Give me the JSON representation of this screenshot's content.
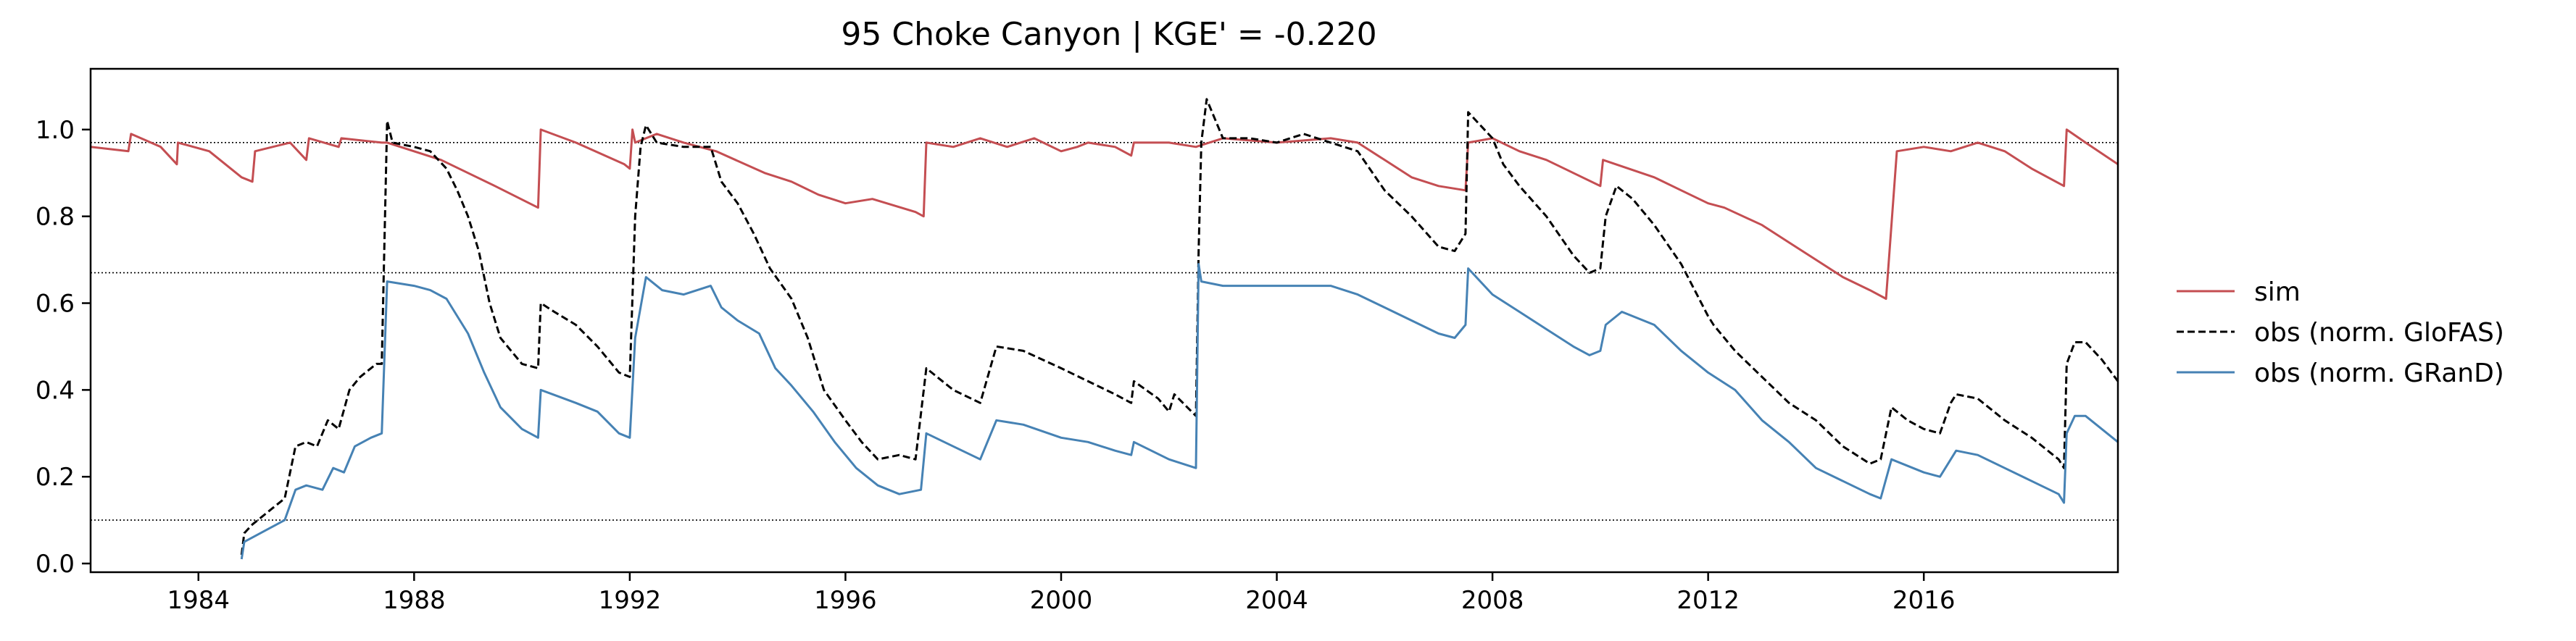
{
  "chart_data": {
    "type": "line",
    "title": "95  Choke Canyon | KGE' = -0.220",
    "xlabel": "",
    "ylabel": "",
    "xlim": [
      1982.0,
      2019.6
    ],
    "ylim": [
      -0.02,
      1.14
    ],
    "x_ticks": [
      1984,
      1988,
      1992,
      1996,
      2000,
      2004,
      2008,
      2012,
      2016
    ],
    "x_tick_labels": [
      "1984",
      "1988",
      "1992",
      "1996",
      "2000",
      "2004",
      "2008",
      "2012",
      "2016"
    ],
    "y_ticks": [
      0.0,
      0.2,
      0.4,
      0.6,
      0.8,
      1.0
    ],
    "y_tick_labels": [
      "0.0",
      "0.2",
      "0.4",
      "0.6",
      "0.8",
      "1.0"
    ],
    "reference_lines": [
      0.1,
      0.67,
      0.97
    ],
    "grid": false,
    "legend_position": "right-outside",
    "series": [
      {
        "name": "sim",
        "color": "#c44e52",
        "style": "solid",
        "points": [
          [
            1982.0,
            0.96
          ],
          [
            1982.7,
            0.95
          ],
          [
            1982.75,
            0.99
          ],
          [
            1983.3,
            0.96
          ],
          [
            1983.6,
            0.92
          ],
          [
            1983.62,
            0.97
          ],
          [
            1984.2,
            0.95
          ],
          [
            1984.8,
            0.89
          ],
          [
            1985.0,
            0.88
          ],
          [
            1985.05,
            0.95
          ],
          [
            1985.7,
            0.97
          ],
          [
            1986.0,
            0.93
          ],
          [
            1986.05,
            0.98
          ],
          [
            1986.6,
            0.96
          ],
          [
            1986.65,
            0.98
          ],
          [
            1987.4,
            0.97
          ],
          [
            1987.5,
            0.97
          ],
          [
            1988.5,
            0.93
          ],
          [
            1989.0,
            0.9
          ],
          [
            1989.5,
            0.87
          ],
          [
            1990.3,
            0.82
          ],
          [
            1990.35,
            1.0
          ],
          [
            1991.0,
            0.97
          ],
          [
            1991.9,
            0.92
          ],
          [
            1992.0,
            0.91
          ],
          [
            1992.05,
            1.0
          ],
          [
            1992.1,
            0.97
          ],
          [
            1992.5,
            0.99
          ],
          [
            1993.0,
            0.97
          ],
          [
            1993.6,
            0.95
          ],
          [
            1994.5,
            0.9
          ],
          [
            1995.0,
            0.88
          ],
          [
            1995.5,
            0.85
          ],
          [
            1996.0,
            0.83
          ],
          [
            1996.5,
            0.84
          ],
          [
            1997.3,
            0.81
          ],
          [
            1997.45,
            0.8
          ],
          [
            1997.5,
            0.97
          ],
          [
            1998.0,
            0.96
          ],
          [
            1998.5,
            0.98
          ],
          [
            1999.0,
            0.96
          ],
          [
            1999.5,
            0.98
          ],
          [
            2000.0,
            0.95
          ],
          [
            2000.3,
            0.96
          ],
          [
            2000.5,
            0.97
          ],
          [
            2001.0,
            0.96
          ],
          [
            2001.3,
            0.94
          ],
          [
            2001.35,
            0.97
          ],
          [
            2002.0,
            0.97
          ],
          [
            2002.5,
            0.96
          ],
          [
            2003.0,
            0.98
          ],
          [
            2004.0,
            0.97
          ],
          [
            2005.0,
            0.98
          ],
          [
            2005.5,
            0.97
          ],
          [
            2006.0,
            0.93
          ],
          [
            2006.5,
            0.89
          ],
          [
            2007.0,
            0.87
          ],
          [
            2007.5,
            0.86
          ],
          [
            2007.55,
            0.97
          ],
          [
            2008.0,
            0.98
          ],
          [
            2008.5,
            0.95
          ],
          [
            2009.0,
            0.93
          ],
          [
            2009.5,
            0.9
          ],
          [
            2010.0,
            0.87
          ],
          [
            2010.05,
            0.93
          ],
          [
            2011.0,
            0.89
          ],
          [
            2011.5,
            0.86
          ],
          [
            2012.0,
            0.83
          ],
          [
            2012.3,
            0.82
          ],
          [
            2013.0,
            0.78
          ],
          [
            2013.5,
            0.74
          ],
          [
            2014.0,
            0.7
          ],
          [
            2014.5,
            0.66
          ],
          [
            2015.0,
            0.63
          ],
          [
            2015.3,
            0.61
          ],
          [
            2015.5,
            0.95
          ],
          [
            2016.0,
            0.96
          ],
          [
            2016.5,
            0.95
          ],
          [
            2017.0,
            0.97
          ],
          [
            2017.5,
            0.95
          ],
          [
            2018.0,
            0.91
          ],
          [
            2018.6,
            0.87
          ],
          [
            2018.65,
            1.0
          ],
          [
            2019.0,
            0.97
          ],
          [
            2019.6,
            0.92
          ]
        ]
      },
      {
        "name": "obs (norm. GloFAS)",
        "color": "#000000",
        "style": "dashed",
        "points": [
          [
            1984.8,
            0.02
          ],
          [
            1984.85,
            0.07
          ],
          [
            1985.0,
            0.09
          ],
          [
            1985.3,
            0.12
          ],
          [
            1985.6,
            0.15
          ],
          [
            1985.8,
            0.27
          ],
          [
            1986.0,
            0.28
          ],
          [
            1986.2,
            0.27
          ],
          [
            1986.4,
            0.33
          ],
          [
            1986.6,
            0.31
          ],
          [
            1986.8,
            0.4
          ],
          [
            1987.0,
            0.43
          ],
          [
            1987.3,
            0.46
          ],
          [
            1987.4,
            0.46
          ],
          [
            1987.5,
            1.02
          ],
          [
            1987.6,
            0.97
          ],
          [
            1988.0,
            0.96
          ],
          [
            1988.3,
            0.95
          ],
          [
            1988.6,
            0.91
          ],
          [
            1988.8,
            0.86
          ],
          [
            1989.0,
            0.8
          ],
          [
            1989.2,
            0.72
          ],
          [
            1989.4,
            0.6
          ],
          [
            1989.6,
            0.52
          ],
          [
            1990.0,
            0.46
          ],
          [
            1990.3,
            0.45
          ],
          [
            1990.35,
            0.6
          ],
          [
            1990.6,
            0.58
          ],
          [
            1991.0,
            0.55
          ],
          [
            1991.4,
            0.5
          ],
          [
            1991.8,
            0.44
          ],
          [
            1992.0,
            0.43
          ],
          [
            1992.1,
            0.8
          ],
          [
            1992.2,
            0.96
          ],
          [
            1992.3,
            1.01
          ],
          [
            1992.5,
            0.97
          ],
          [
            1993.0,
            0.96
          ],
          [
            1993.5,
            0.96
          ],
          [
            1993.7,
            0.88
          ],
          [
            1994.0,
            0.83
          ],
          [
            1994.3,
            0.76
          ],
          [
            1994.6,
            0.68
          ],
          [
            1995.0,
            0.61
          ],
          [
            1995.3,
            0.52
          ],
          [
            1995.6,
            0.4
          ],
          [
            1996.0,
            0.33
          ],
          [
            1996.3,
            0.28
          ],
          [
            1996.6,
            0.24
          ],
          [
            1997.0,
            0.25
          ],
          [
            1997.3,
            0.24
          ],
          [
            1997.5,
            0.45
          ],
          [
            1998.0,
            0.4
          ],
          [
            1998.5,
            0.37
          ],
          [
            1998.8,
            0.5
          ],
          [
            1999.3,
            0.49
          ],
          [
            2000.0,
            0.45
          ],
          [
            2000.5,
            0.42
          ],
          [
            2001.0,
            0.39
          ],
          [
            2001.3,
            0.37
          ],
          [
            2001.35,
            0.42
          ],
          [
            2001.8,
            0.38
          ],
          [
            2002.0,
            0.35
          ],
          [
            2002.1,
            0.39
          ],
          [
            2002.5,
            0.34
          ],
          [
            2002.55,
            0.72
          ],
          [
            2002.6,
            0.97
          ],
          [
            2002.7,
            1.07
          ],
          [
            2003.0,
            0.98
          ],
          [
            2003.5,
            0.98
          ],
          [
            2004.0,
            0.97
          ],
          [
            2004.5,
            0.99
          ],
          [
            2005.0,
            0.97
          ],
          [
            2005.5,
            0.95
          ],
          [
            2006.0,
            0.86
          ],
          [
            2006.5,
            0.8
          ],
          [
            2007.0,
            0.73
          ],
          [
            2007.3,
            0.72
          ],
          [
            2007.5,
            0.76
          ],
          [
            2007.55,
            1.04
          ],
          [
            2008.0,
            0.98
          ],
          [
            2008.2,
            0.92
          ],
          [
            2008.5,
            0.87
          ],
          [
            2009.0,
            0.8
          ],
          [
            2009.5,
            0.71
          ],
          [
            2009.8,
            0.67
          ],
          [
            2010.0,
            0.68
          ],
          [
            2010.1,
            0.8
          ],
          [
            2010.3,
            0.87
          ],
          [
            2010.6,
            0.84
          ],
          [
            2011.0,
            0.78
          ],
          [
            2011.5,
            0.69
          ],
          [
            2012.0,
            0.57
          ],
          [
            2012.1,
            0.55
          ],
          [
            2012.5,
            0.49
          ],
          [
            2013.0,
            0.43
          ],
          [
            2013.5,
            0.37
          ],
          [
            2014.0,
            0.33
          ],
          [
            2014.5,
            0.27
          ],
          [
            2015.0,
            0.23
          ],
          [
            2015.2,
            0.24
          ],
          [
            2015.4,
            0.36
          ],
          [
            2015.7,
            0.33
          ],
          [
            2016.0,
            0.31
          ],
          [
            2016.3,
            0.3
          ],
          [
            2016.5,
            0.37
          ],
          [
            2016.6,
            0.39
          ],
          [
            2017.0,
            0.38
          ],
          [
            2017.5,
            0.33
          ],
          [
            2018.0,
            0.29
          ],
          [
            2018.5,
            0.24
          ],
          [
            2018.6,
            0.22
          ],
          [
            2018.65,
            0.46
          ],
          [
            2018.8,
            0.51
          ],
          [
            2019.0,
            0.51
          ],
          [
            2019.3,
            0.47
          ],
          [
            2019.6,
            0.42
          ]
        ]
      },
      {
        "name": "obs (norm. GRanD)",
        "color": "#4682b4",
        "style": "solid",
        "points": [
          [
            1984.8,
            0.01
          ],
          [
            1984.85,
            0.05
          ],
          [
            1985.0,
            0.06
          ],
          [
            1985.3,
            0.08
          ],
          [
            1985.6,
            0.1
          ],
          [
            1985.8,
            0.17
          ],
          [
            1986.0,
            0.18
          ],
          [
            1986.3,
            0.17
          ],
          [
            1986.5,
            0.22
          ],
          [
            1986.7,
            0.21
          ],
          [
            1986.9,
            0.27
          ],
          [
            1987.2,
            0.29
          ],
          [
            1987.4,
            0.3
          ],
          [
            1987.5,
            0.65
          ],
          [
            1988.0,
            0.64
          ],
          [
            1988.3,
            0.63
          ],
          [
            1988.6,
            0.61
          ],
          [
            1989.0,
            0.53
          ],
          [
            1989.3,
            0.44
          ],
          [
            1989.6,
            0.36
          ],
          [
            1990.0,
            0.31
          ],
          [
            1990.3,
            0.29
          ],
          [
            1990.35,
            0.4
          ],
          [
            1991.0,
            0.37
          ],
          [
            1991.4,
            0.35
          ],
          [
            1991.8,
            0.3
          ],
          [
            1992.0,
            0.29
          ],
          [
            1992.1,
            0.52
          ],
          [
            1992.3,
            0.66
          ],
          [
            1992.6,
            0.63
          ],
          [
            1993.0,
            0.62
          ],
          [
            1993.5,
            0.64
          ],
          [
            1993.7,
            0.59
          ],
          [
            1994.0,
            0.56
          ],
          [
            1994.4,
            0.53
          ],
          [
            1994.7,
            0.45
          ],
          [
            1995.0,
            0.41
          ],
          [
            1995.4,
            0.35
          ],
          [
            1995.8,
            0.28
          ],
          [
            1996.2,
            0.22
          ],
          [
            1996.6,
            0.18
          ],
          [
            1997.0,
            0.16
          ],
          [
            1997.4,
            0.17
          ],
          [
            1997.5,
            0.3
          ],
          [
            1998.0,
            0.27
          ],
          [
            1998.5,
            0.24
          ],
          [
            1998.8,
            0.33
          ],
          [
            1999.3,
            0.32
          ],
          [
            2000.0,
            0.29
          ],
          [
            2000.5,
            0.28
          ],
          [
            2001.0,
            0.26
          ],
          [
            2001.3,
            0.25
          ],
          [
            2001.35,
            0.28
          ],
          [
            2002.0,
            0.24
          ],
          [
            2002.5,
            0.22
          ],
          [
            2002.55,
            0.69
          ],
          [
            2002.6,
            0.65
          ],
          [
            2003.0,
            0.64
          ],
          [
            2004.0,
            0.64
          ],
          [
            2005.0,
            0.64
          ],
          [
            2005.5,
            0.62
          ],
          [
            2006.0,
            0.59
          ],
          [
            2006.5,
            0.56
          ],
          [
            2007.0,
            0.53
          ],
          [
            2007.3,
            0.52
          ],
          [
            2007.5,
            0.55
          ],
          [
            2007.55,
            0.68
          ],
          [
            2008.0,
            0.62
          ],
          [
            2008.5,
            0.58
          ],
          [
            2009.0,
            0.54
          ],
          [
            2009.5,
            0.5
          ],
          [
            2009.8,
            0.48
          ],
          [
            2010.0,
            0.49
          ],
          [
            2010.1,
            0.55
          ],
          [
            2010.4,
            0.58
          ],
          [
            2011.0,
            0.55
          ],
          [
            2011.5,
            0.49
          ],
          [
            2012.0,
            0.44
          ],
          [
            2012.5,
            0.4
          ],
          [
            2013.0,
            0.33
          ],
          [
            2013.5,
            0.28
          ],
          [
            2014.0,
            0.22
          ],
          [
            2014.5,
            0.19
          ],
          [
            2015.0,
            0.16
          ],
          [
            2015.2,
            0.15
          ],
          [
            2015.4,
            0.24
          ],
          [
            2015.8,
            0.22
          ],
          [
            2016.0,
            0.21
          ],
          [
            2016.3,
            0.2
          ],
          [
            2016.6,
            0.26
          ],
          [
            2017.0,
            0.25
          ],
          [
            2017.5,
            0.22
          ],
          [
            2018.0,
            0.19
          ],
          [
            2018.5,
            0.16
          ],
          [
            2018.6,
            0.14
          ],
          [
            2018.65,
            0.3
          ],
          [
            2018.8,
            0.34
          ],
          [
            2019.0,
            0.34
          ],
          [
            2019.3,
            0.31
          ],
          [
            2019.6,
            0.28
          ]
        ]
      }
    ]
  }
}
